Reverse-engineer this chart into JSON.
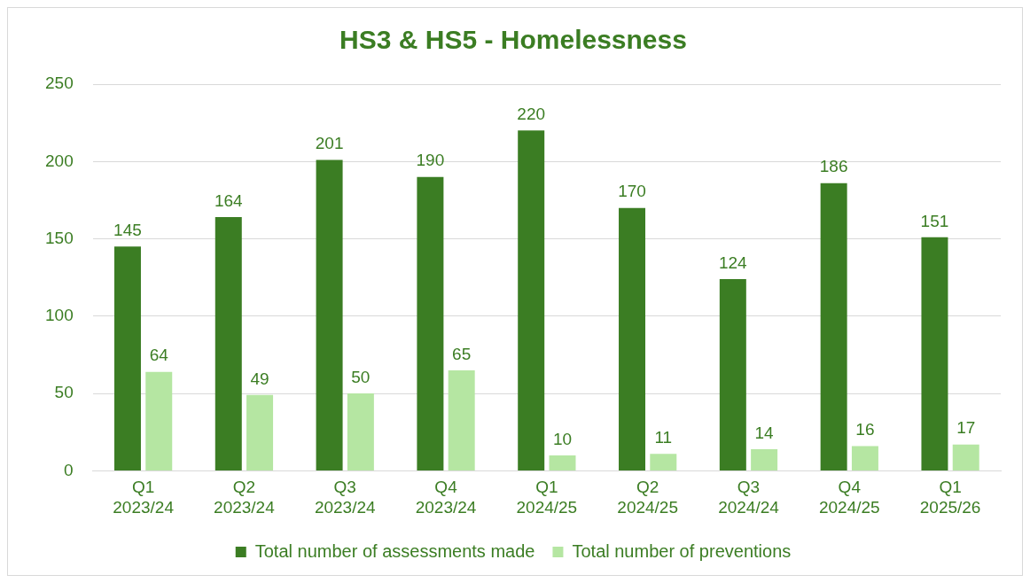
{
  "chart_data": {
    "type": "bar",
    "title": "HS3 & HS5 - Homelessness",
    "categories": [
      "Q1 2023/24",
      "Q2 2023/24",
      "Q3 2023/24",
      "Q4 2023/24",
      "Q1 2024/25",
      "Q2 2024/25",
      "Q3 2024/24",
      "Q4 2024/25",
      "Q1 2025/26"
    ],
    "series": [
      {
        "name": "Total number of assessments made",
        "color": "#3b7d23",
        "values": [
          145,
          164,
          201,
          190,
          220,
          170,
          124,
          186,
          151
        ]
      },
      {
        "name": "Total number of preventions",
        "color": "#b5e6a2",
        "values": [
          64,
          49,
          50,
          65,
          10,
          11,
          14,
          16,
          17
        ]
      }
    ],
    "ylim": [
      0,
      250
    ],
    "yticks": [
      0,
      50,
      100,
      150,
      200,
      250
    ],
    "grid": "y",
    "legend": "bottom",
    "data_labels": true
  }
}
